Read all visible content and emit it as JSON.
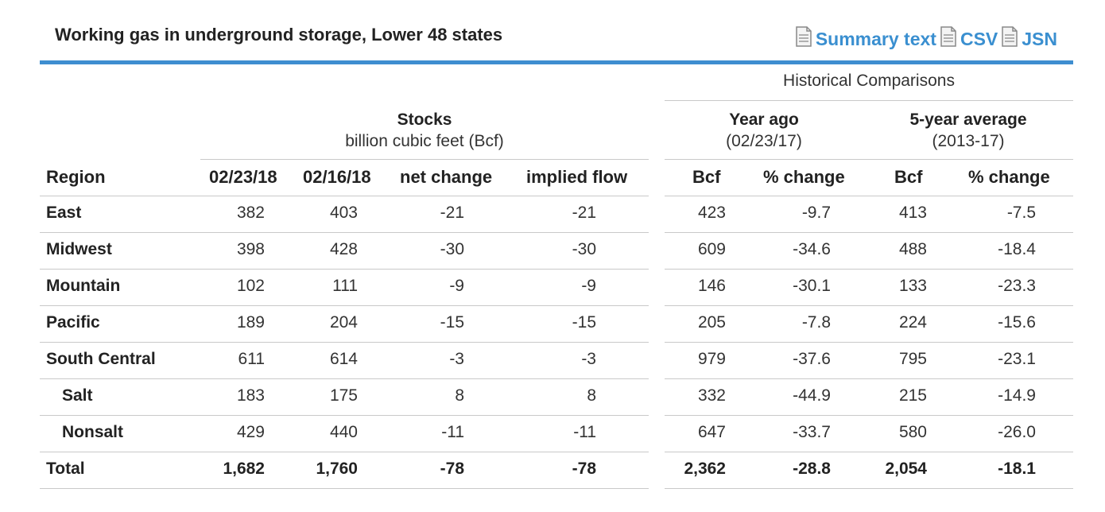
{
  "title": "Working gas in underground storage, Lower 48 states",
  "links": {
    "summary_text": "Summary text",
    "csv": "CSV",
    "jsn": "JSN",
    "icon": "document-icon"
  },
  "historical_header": "Historical Comparisons",
  "groups": {
    "stocks": {
      "title": "Stocks",
      "subtitle": "billion cubic feet (Bcf)"
    },
    "year_ago": {
      "title": "Year ago",
      "subtitle": "(02/23/17)"
    },
    "five_year": {
      "title": "5-year average",
      "subtitle": "(2013-17)"
    }
  },
  "columns": [
    "Region",
    "02/23/18",
    "02/16/18",
    "net change",
    "implied flow",
    "Bcf",
    "% change",
    "Bcf",
    "% change"
  ],
  "rows": [
    {
      "region": "East",
      "cells": [
        "382",
        "403",
        "-21",
        "-21",
        "423",
        "-9.7",
        "413",
        "-7.5"
      ]
    },
    {
      "region": "Midwest",
      "cells": [
        "398",
        "428",
        "-30",
        "-30",
        "609",
        "-34.6",
        "488",
        "-18.4"
      ]
    },
    {
      "region": "Mountain",
      "cells": [
        "102",
        "111",
        "-9",
        "-9",
        "146",
        "-30.1",
        "133",
        "-23.3"
      ]
    },
    {
      "region": "Pacific",
      "cells": [
        "189",
        "204",
        "-15",
        "-15",
        "205",
        "-7.8",
        "224",
        "-15.6"
      ]
    },
    {
      "region": "South Central",
      "cells": [
        "611",
        "614",
        "-3",
        "-3",
        "979",
        "-37.6",
        "795",
        "-23.1"
      ]
    },
    {
      "region": "Salt",
      "cells": [
        "183",
        "175",
        "8",
        "8",
        "332",
        "-44.9",
        "215",
        "-14.9"
      ]
    },
    {
      "region": "Nonsalt",
      "cells": [
        "429",
        "440",
        "-11",
        "-11",
        "647",
        "-33.7",
        "580",
        "-26.0"
      ]
    },
    {
      "region": "Total",
      "cells": [
        "1,682",
        "1,760",
        "-78",
        "-78",
        "2,362",
        "-28.8",
        "2,054",
        "-18.1"
      ]
    }
  ],
  "colors": {
    "accent": "#3e8ed0",
    "link": "#3a8fd0",
    "rule": "#c9c9c9"
  }
}
